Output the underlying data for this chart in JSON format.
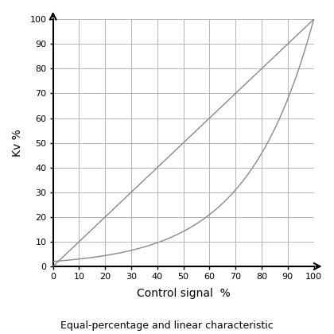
{
  "title": "Equal-percentage and linear characteristic",
  "xlabel": "Control signal  %",
  "ylabel": "Kv %",
  "xticks": [
    0,
    10,
    20,
    30,
    40,
    50,
    60,
    70,
    80,
    90,
    100
  ],
  "yticks": [
    0,
    10,
    20,
    30,
    40,
    50,
    60,
    70,
    80,
    90,
    100
  ],
  "grid_color": "#aaaaaa",
  "axis_color": "#000000",
  "curve_color": "#888888",
  "curve_linewidth": 1.0,
  "background_color": "#ffffff",
  "equal_percentage_rangeability": 50,
  "spine_linewidth": 1.5,
  "tick_fontsize": 8,
  "xlabel_fontsize": 10,
  "ylabel_fontsize": 10,
  "caption_fontsize": 9
}
